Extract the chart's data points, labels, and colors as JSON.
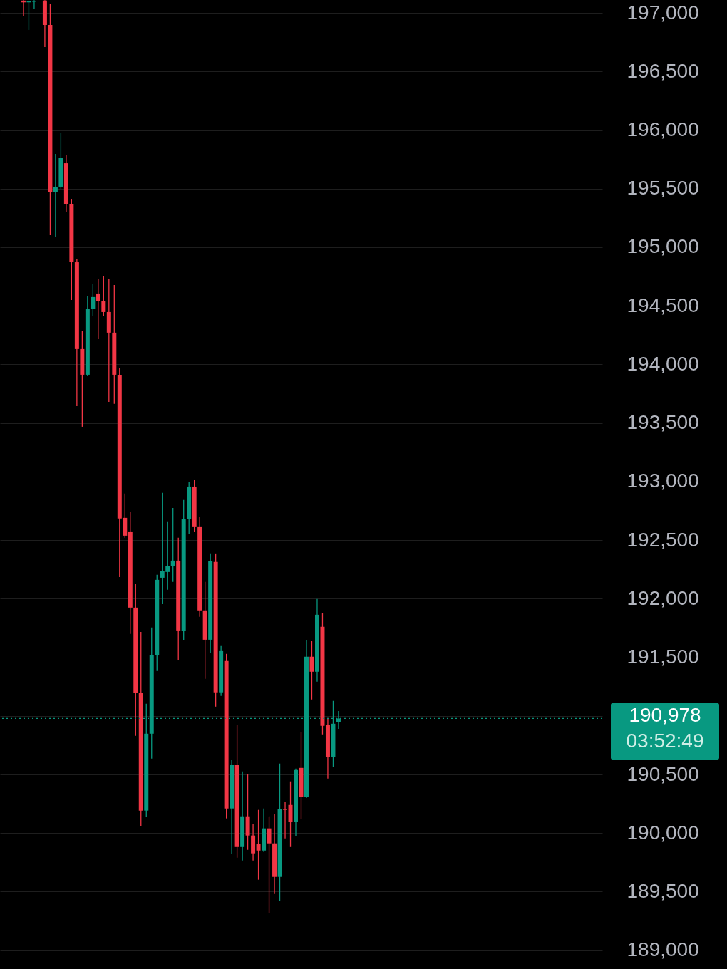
{
  "chart_data": {
    "type": "candlestick",
    "categories": [
      null,
      null,
      null,
      null,
      null,
      null,
      null,
      null,
      null,
      null,
      null,
      null,
      null,
      null,
      null,
      null,
      null,
      null,
      null,
      null,
      null,
      null,
      null,
      null,
      null,
      null,
      null,
      null,
      null,
      null,
      null,
      null,
      null,
      null,
      null,
      null,
      null,
      null,
      null,
      null,
      null,
      null,
      null,
      null,
      null,
      null,
      null,
      null,
      null,
      null,
      null,
      null,
      null,
      null,
      null,
      null,
      null,
      null,
      null,
      null,
      null,
      null,
      null,
      null,
      null,
      null,
      null,
      null,
      null,
      null,
      null,
      null,
      null,
      null,
      null,
      null,
      null,
      null,
      null,
      null,
      null,
      null,
      null,
      null,
      null,
      null,
      null,
      null,
      null,
      null,
      null,
      null,
      null,
      null,
      null,
      null,
      null,
      null,
      null,
      null,
      null,
      null,
      null,
      null,
      null,
      null,
      null,
      null,
      null,
      null,
      null,
      null,
      null
    ],
    "ohlc": [
      null,
      null,
      null,
      null,
      [
        197105,
        197108,
        196976,
        197090
      ],
      [
        197090,
        197105,
        196855,
        197100
      ],
      [
        197095,
        197108,
        197036,
        197100
      ],
      null,
      [
        197105,
        197108,
        196708,
        196897
      ],
      [
        196897,
        197078,
        195103,
        195468
      ],
      [
        195468,
        195796,
        195091,
        195517
      ],
      [
        195517,
        195979,
        195500,
        195760
      ],
      [
        195717,
        195784,
        195304,
        195365
      ],
      [
        195365,
        195407,
        194550,
        194872
      ],
      [
        194872,
        194900,
        193644,
        194131
      ],
      [
        194131,
        194283,
        193468,
        193912
      ],
      [
        193912,
        194587,
        193900,
        194477
      ],
      [
        194477,
        194690,
        194416,
        194575
      ],
      [
        194605,
        194726,
        194216,
        194544
      ],
      [
        194544,
        194757,
        194416,
        194447
      ],
      [
        194447,
        194726,
        193681,
        194271
      ],
      [
        194271,
        194678,
        193663,
        193912
      ],
      [
        193912,
        193973,
        192185,
        192684
      ],
      [
        192690,
        192897,
        192520,
        192538
      ],
      [
        192574,
        192739,
        191699,
        191924
      ],
      [
        191924,
        192125,
        190830,
        191195
      ],
      [
        191195,
        191717,
        190058,
        190192
      ],
      [
        190192,
        191103,
        190137,
        190848
      ],
      [
        190848,
        191754,
        190635,
        191517
      ],
      [
        191517,
        192204,
        191383,
        192161
      ],
      [
        192179,
        192903,
        191954,
        192234
      ],
      [
        192228,
        192660,
        192076,
        192277
      ],
      [
        192277,
        192775,
        192143,
        192325
      ],
      [
        192325,
        192520,
        191474,
        191729
      ],
      [
        191729,
        192842,
        191650,
        192678
      ],
      [
        192678,
        192994,
        192550,
        192957
      ],
      [
        192957,
        193018,
        192568,
        192617
      ],
      [
        192617,
        192696,
        191845,
        191900
      ],
      [
        191900,
        192143,
        191316,
        191650
      ],
      [
        191650,
        192386,
        191535,
        192319
      ],
      [
        192313,
        192386,
        191079,
        191201
      ],
      [
        191201,
        191602,
        191170,
        191559
      ],
      [
        191468,
        191529,
        190125,
        190210
      ],
      [
        190210,
        190623,
        189821,
        190580
      ],
      [
        190580,
        190921,
        189790,
        189881
      ],
      [
        189881,
        190526,
        189766,
        190143
      ],
      [
        190143,
        190502,
        189857,
        189979
      ],
      [
        189979,
        190076,
        189766,
        189827
      ],
      [
        189906,
        190198,
        189602,
        189851
      ],
      [
        189851,
        190210,
        189839,
        190040
      ],
      [
        190040,
        190143,
        189316,
        189912
      ],
      [
        189912,
        190161,
        189480,
        189626
      ],
      [
        189626,
        190593,
        189419,
        190204
      ],
      [
        190204,
        190265,
        189954,
        190198
      ],
      [
        190240,
        190441,
        189881,
        190094
      ],
      [
        190094,
        190550,
        189973,
        190538
      ],
      [
        190556,
        190866,
        190118,
        190307
      ],
      [
        190307,
        191650,
        190300,
        191505
      ],
      [
        191505,
        191638,
        191140,
        191377
      ],
      [
        191377,
        191997,
        191292,
        191863
      ],
      [
        191760,
        191875,
        190842,
        190915
      ],
      [
        190921,
        190982,
        190465,
        190647
      ],
      [
        190647,
        191128,
        190562,
        190933
      ],
      [
        190945,
        191042,
        190890,
        190978
      ],
      null,
      null,
      null,
      null,
      null,
      null,
      null,
      null,
      null,
      null,
      null,
      null,
      null,
      null,
      null,
      null,
      null,
      null,
      null,
      null,
      null,
      null,
      null,
      null,
      null,
      null,
      null,
      null,
      null,
      null,
      null,
      null,
      null,
      null,
      null,
      null,
      null,
      null,
      null,
      null,
      null,
      null,
      null,
      null,
      null,
      null,
      null,
      null,
      null
    ],
    "colors": [
      null,
      null,
      null,
      null,
      "#f23645",
      "#089981",
      "#089981",
      null,
      "#f23645",
      "#f23645",
      "#089981",
      "#089981",
      "#f23645",
      "#f23645",
      "#f23645",
      "#f23645",
      "#089981",
      "#089981",
      "#f23645",
      "#f23645",
      "#f23645",
      "#f23645",
      "#f23645",
      "#f23645",
      "#f23645",
      "#f23645",
      "#f23645",
      "#089981",
      "#089981",
      "#089981",
      "#089981",
      "#089981",
      "#089981",
      "#f23645",
      "#089981",
      "#089981",
      "#f23645",
      "#f23645",
      "#f23645",
      "#089981",
      "#f23645",
      "#089981",
      "#f23645",
      "#089981",
      "#f23645",
      "#089981",
      "#f23645",
      "#f23645",
      "#f23645",
      "#089981",
      "#f23645",
      "#f23645",
      "#089981",
      "#f23645",
      "#f23645",
      "#089981",
      "#f23645",
      "#089981",
      "#f23645",
      "#089981",
      "#f23645",
      "#f23645",
      "#089981",
      "#089981",
      null,
      null,
      null,
      null,
      null,
      null,
      null,
      null,
      null,
      null,
      null,
      null,
      null,
      null,
      null,
      null,
      null,
      null,
      null,
      null,
      null,
      null,
      null,
      null,
      null,
      null,
      null,
      null,
      null,
      null,
      null,
      null,
      null,
      null,
      null,
      null,
      null,
      null,
      null,
      null,
      null,
      null,
      null,
      null,
      null,
      null,
      null,
      null,
      null
    ],
    "ylim": [
      188840,
      197110
    ],
    "yticks": [
      {
        "value": 189000,
        "label": "189,000"
      },
      {
        "value": 189500,
        "label": "189,500"
      },
      {
        "value": 190000,
        "label": "190,000"
      },
      {
        "value": 190500,
        "label": "190,500"
      },
      {
        "value": 191000,
        "label": null
      },
      {
        "value": 191500,
        "label": "191,500"
      },
      {
        "value": 192000,
        "label": "192,000"
      },
      {
        "value": 192500,
        "label": "192,500"
      },
      {
        "value": 193000,
        "label": "193,000"
      },
      {
        "value": 193500,
        "label": "193,500"
      },
      {
        "value": 194000,
        "label": "194,000"
      },
      {
        "value": 194500,
        "label": "194,500"
      },
      {
        "value": 195000,
        "label": "195,000"
      },
      {
        "value": 195500,
        "label": "195,500"
      },
      {
        "value": 196000,
        "label": "196,000"
      },
      {
        "value": 196500,
        "label": "196,500"
      },
      {
        "value": 197000,
        "label": "197,000"
      }
    ],
    "grid": "y",
    "tick_labels": "y",
    "ref_lines": [
      {
        "axis": "y",
        "value": 190978,
        "label": "190,978",
        "color": "#089981",
        "line_style": "dotted"
      }
    ],
    "annotations": [
      "03:52:49"
    ]
  }
}
